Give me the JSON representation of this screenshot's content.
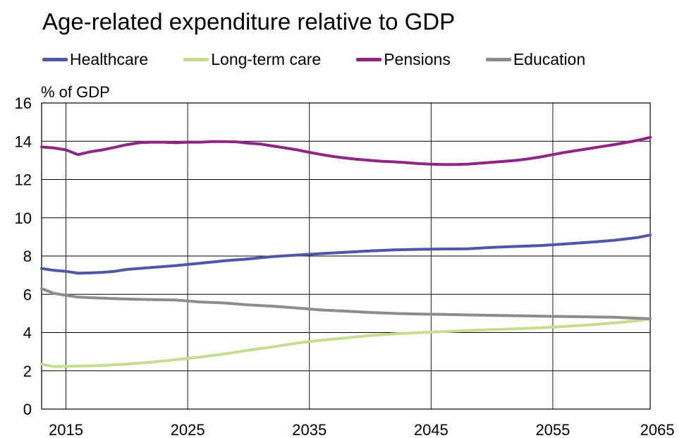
{
  "chart_data": {
    "type": "line",
    "title": "Age-related expenditure relative to GDP",
    "ylabel": "% of GDP",
    "xlabel": "",
    "xlim": [
      2013,
      2063
    ],
    "ylim": [
      0,
      16
    ],
    "x_ticks": [
      2015,
      2025,
      2035,
      2045,
      2055,
      2065
    ],
    "y_ticks": [
      0,
      2,
      4,
      6,
      8,
      10,
      12,
      14,
      16
    ],
    "grid": true,
    "legend_position": "top",
    "series": [
      {
        "name": "Healthcare",
        "color": "#4f56a8",
        "points": [
          [
            2013,
            7.35
          ],
          [
            2014,
            7.25
          ],
          [
            2015,
            7.2
          ],
          [
            2016,
            7.1
          ],
          [
            2017,
            7.12
          ],
          [
            2018,
            7.15
          ],
          [
            2019,
            7.2
          ],
          [
            2020,
            7.3
          ],
          [
            2022,
            7.4
          ],
          [
            2024,
            7.5
          ],
          [
            2026,
            7.62
          ],
          [
            2028,
            7.75
          ],
          [
            2030,
            7.85
          ],
          [
            2032,
            7.97
          ],
          [
            2034,
            8.05
          ],
          [
            2036,
            8.13
          ],
          [
            2038,
            8.2
          ],
          [
            2040,
            8.27
          ],
          [
            2042,
            8.32
          ],
          [
            2044,
            8.35
          ],
          [
            2046,
            8.37
          ],
          [
            2048,
            8.38
          ],
          [
            2050,
            8.45
          ],
          [
            2052,
            8.5
          ],
          [
            2054,
            8.55
          ],
          [
            2056,
            8.63
          ],
          [
            2058,
            8.72
          ],
          [
            2060,
            8.82
          ],
          [
            2062,
            8.97
          ],
          [
            2063,
            9.1
          ]
        ]
      },
      {
        "name": "Long-term care",
        "color": "#c6dc8f",
        "points": [
          [
            2013,
            2.35
          ],
          [
            2014,
            2.22
          ],
          [
            2015,
            2.24
          ],
          [
            2016,
            2.25
          ],
          [
            2018,
            2.28
          ],
          [
            2020,
            2.35
          ],
          [
            2022,
            2.45
          ],
          [
            2024,
            2.58
          ],
          [
            2026,
            2.72
          ],
          [
            2028,
            2.88
          ],
          [
            2030,
            3.08
          ],
          [
            2032,
            3.25
          ],
          [
            2034,
            3.45
          ],
          [
            2036,
            3.6
          ],
          [
            2038,
            3.72
          ],
          [
            2040,
            3.85
          ],
          [
            2042,
            3.93
          ],
          [
            2044,
            4.0
          ],
          [
            2046,
            4.05
          ],
          [
            2048,
            4.1
          ],
          [
            2050,
            4.15
          ],
          [
            2052,
            4.2
          ],
          [
            2054,
            4.25
          ],
          [
            2056,
            4.32
          ],
          [
            2058,
            4.4
          ],
          [
            2060,
            4.5
          ],
          [
            2062,
            4.62
          ],
          [
            2063,
            4.72
          ]
        ]
      },
      {
        "name": "Pensions",
        "color": "#8e2585",
        "points": [
          [
            2013,
            13.7
          ],
          [
            2014,
            13.65
          ],
          [
            2015,
            13.55
          ],
          [
            2016,
            13.3
          ],
          [
            2017,
            13.45
          ],
          [
            2018,
            13.55
          ],
          [
            2019,
            13.68
          ],
          [
            2020,
            13.82
          ],
          [
            2021,
            13.92
          ],
          [
            2022,
            13.95
          ],
          [
            2023,
            13.95
          ],
          [
            2024,
            13.92
          ],
          [
            2025,
            13.95
          ],
          [
            2026,
            13.95
          ],
          [
            2027,
            13.98
          ],
          [
            2028,
            13.98
          ],
          [
            2029,
            13.97
          ],
          [
            2030,
            13.9
          ],
          [
            2031,
            13.85
          ],
          [
            2032,
            13.75
          ],
          [
            2033,
            13.65
          ],
          [
            2034,
            13.55
          ],
          [
            2035,
            13.42
          ],
          [
            2036,
            13.3
          ],
          [
            2037,
            13.2
          ],
          [
            2038,
            13.12
          ],
          [
            2039,
            13.05
          ],
          [
            2040,
            13.0
          ],
          [
            2041,
            12.95
          ],
          [
            2042,
            12.92
          ],
          [
            2043,
            12.88
          ],
          [
            2044,
            12.83
          ],
          [
            2045,
            12.8
          ],
          [
            2046,
            12.78
          ],
          [
            2047,
            12.78
          ],
          [
            2048,
            12.8
          ],
          [
            2049,
            12.85
          ],
          [
            2050,
            12.9
          ],
          [
            2051,
            12.95
          ],
          [
            2052,
            13.0
          ],
          [
            2053,
            13.08
          ],
          [
            2054,
            13.18
          ],
          [
            2055,
            13.3
          ],
          [
            2056,
            13.42
          ],
          [
            2057,
            13.52
          ],
          [
            2058,
            13.62
          ],
          [
            2059,
            13.72
          ],
          [
            2060,
            13.82
          ],
          [
            2061,
            13.93
          ],
          [
            2062,
            14.05
          ],
          [
            2063,
            14.2
          ]
        ]
      },
      {
        "name": "Education",
        "color": "#8c8c8c",
        "points": [
          [
            2013,
            6.3
          ],
          [
            2014,
            6.05
          ],
          [
            2015,
            5.95
          ],
          [
            2016,
            5.85
          ],
          [
            2018,
            5.8
          ],
          [
            2020,
            5.75
          ],
          [
            2022,
            5.72
          ],
          [
            2024,
            5.7
          ],
          [
            2026,
            5.6
          ],
          [
            2028,
            5.55
          ],
          [
            2030,
            5.45
          ],
          [
            2032,
            5.38
          ],
          [
            2034,
            5.28
          ],
          [
            2036,
            5.18
          ],
          [
            2038,
            5.12
          ],
          [
            2040,
            5.05
          ],
          [
            2042,
            5.0
          ],
          [
            2044,
            4.97
          ],
          [
            2046,
            4.95
          ],
          [
            2048,
            4.92
          ],
          [
            2050,
            4.9
          ],
          [
            2052,
            4.88
          ],
          [
            2054,
            4.86
          ],
          [
            2056,
            4.84
          ],
          [
            2058,
            4.82
          ],
          [
            2060,
            4.8
          ],
          [
            2062,
            4.75
          ],
          [
            2063,
            4.72
          ]
        ]
      }
    ]
  }
}
